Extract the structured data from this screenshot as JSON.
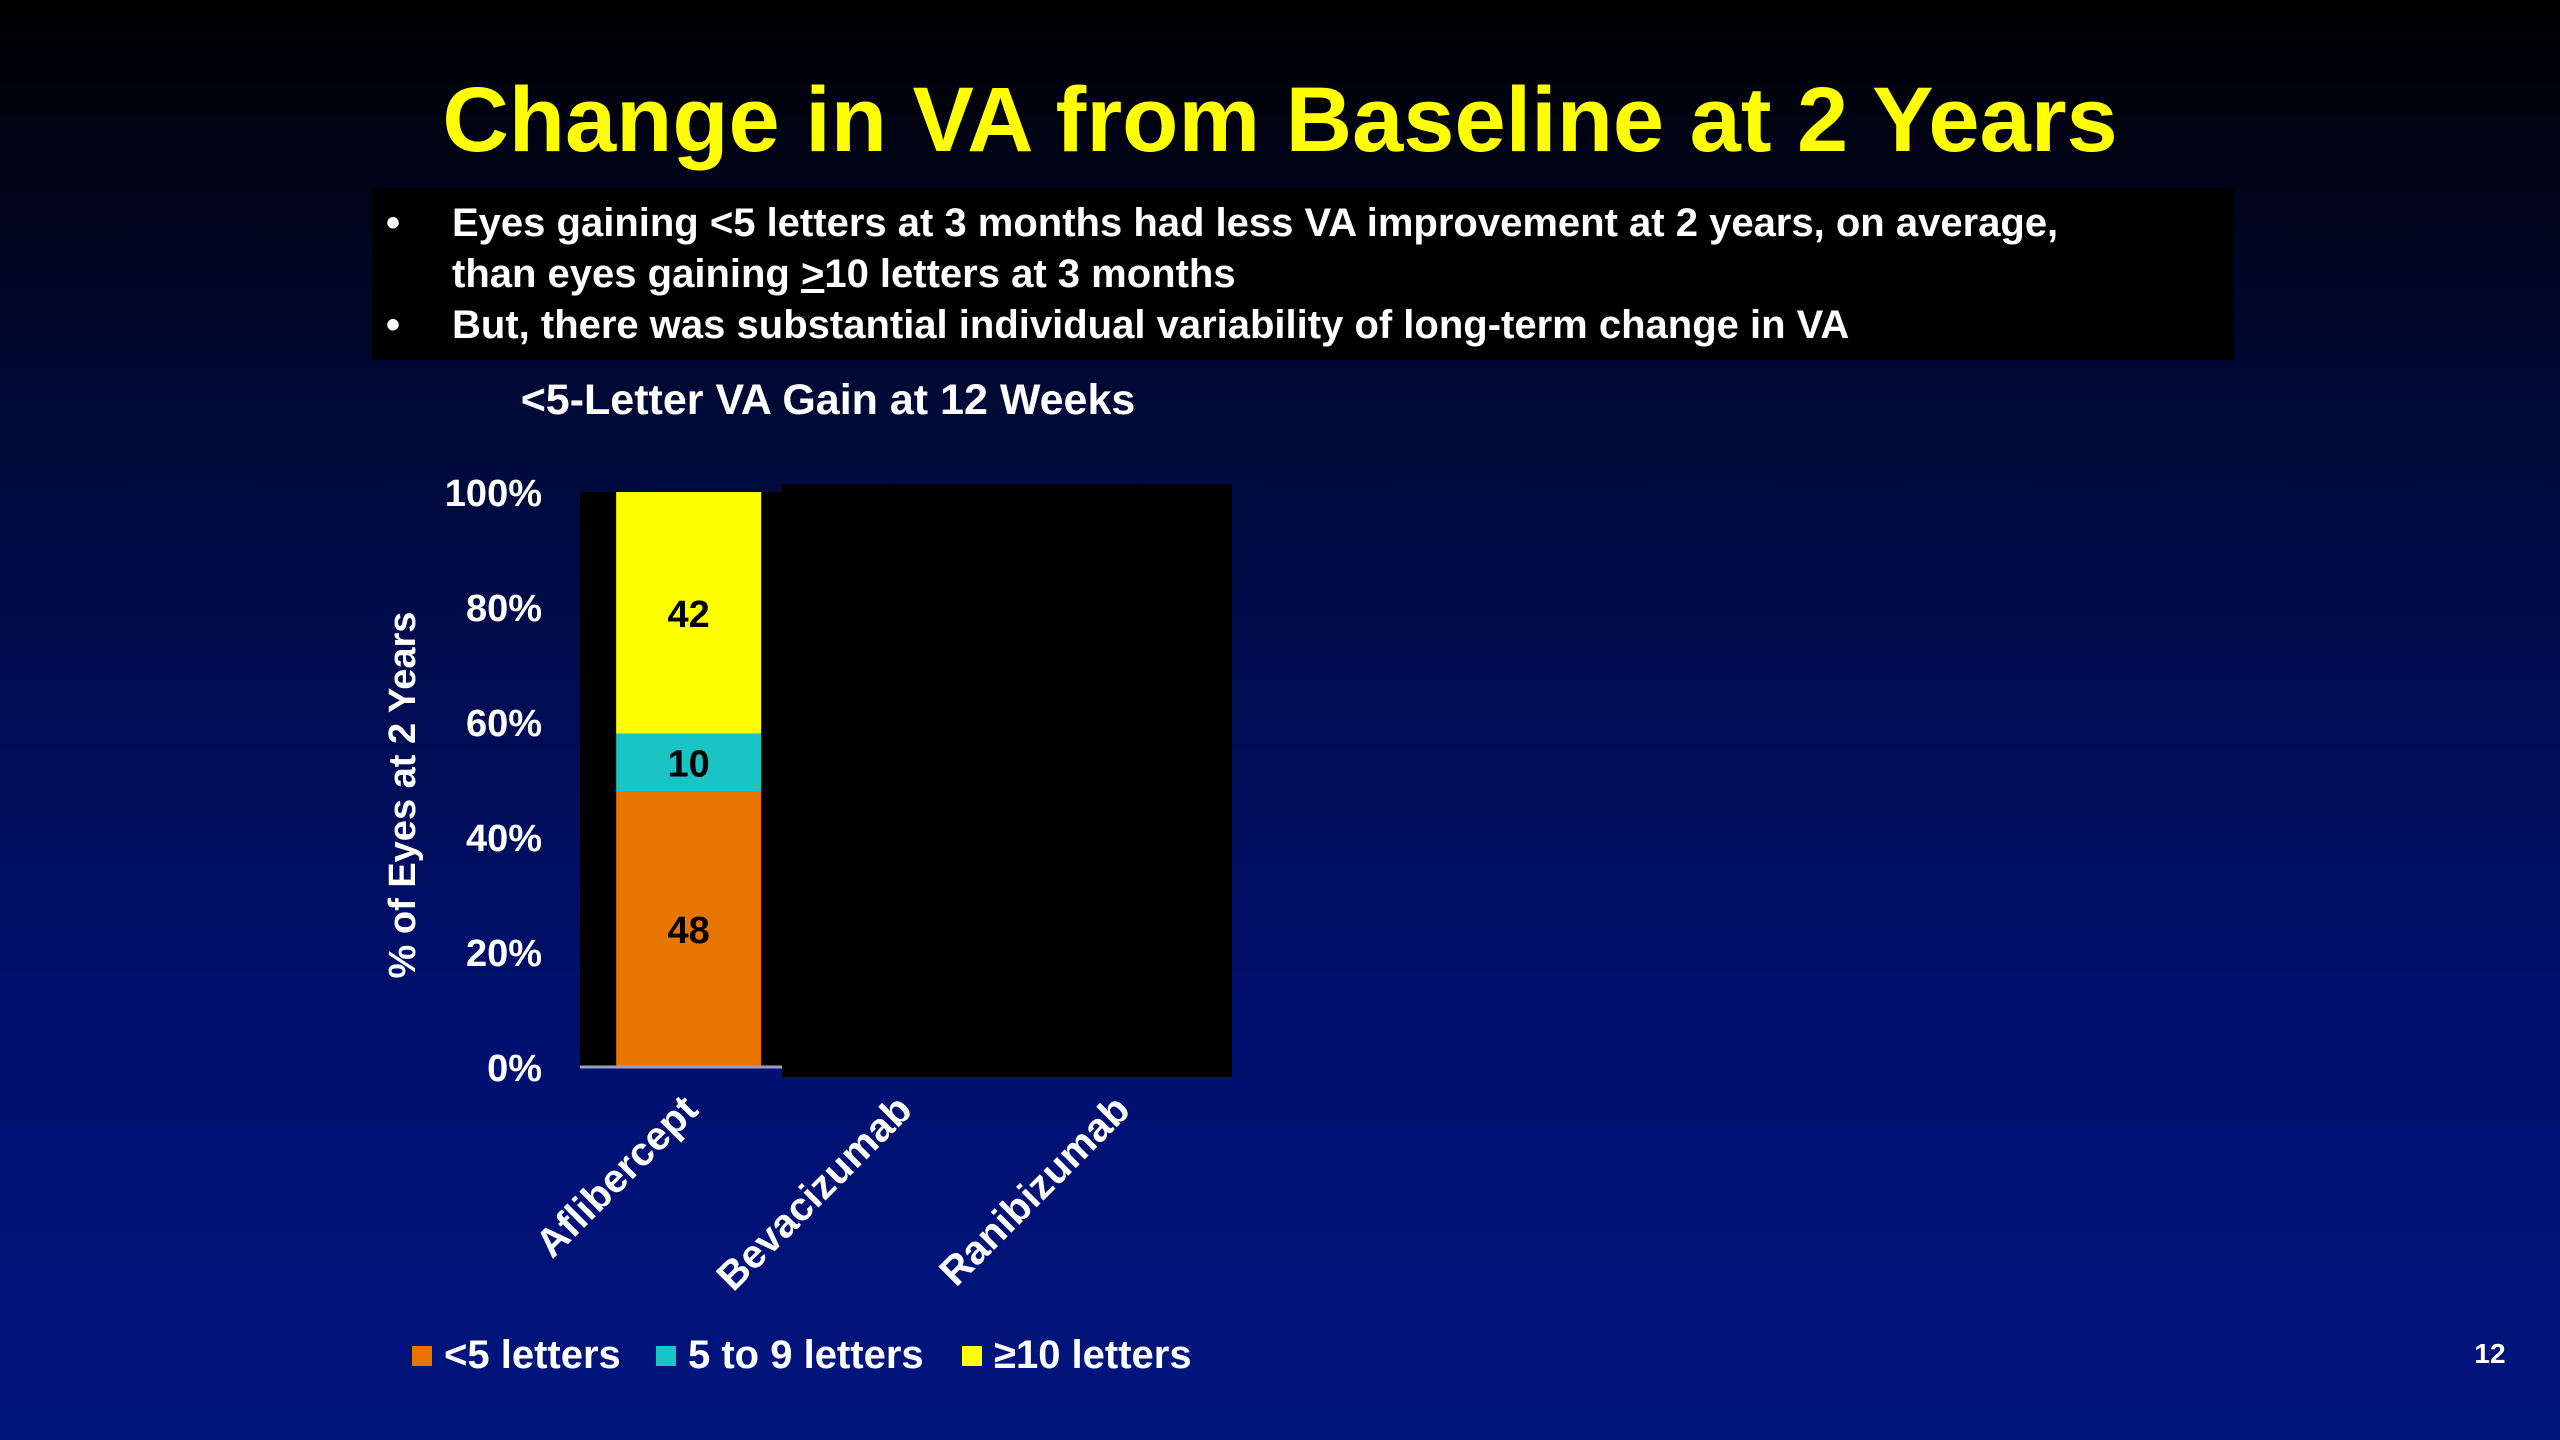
{
  "slide": {
    "title": "Change in VA from Baseline at 2 Years",
    "bullets": {
      "b1_line1": "Eyes gaining <5 letters at 3 months had less VA improvement at 2 years, on average,",
      "b1_line2_pre": "than eyes gaining ",
      "b1_line2_under": ">",
      "b1_line2_post": "10 letters at 3 months",
      "b2": "But, there was substantial individual variability of long-term change in VA"
    },
    "page_number": "12"
  },
  "chart_data": {
    "type": "bar",
    "stacked": true,
    "title": "<5-Letter VA Gain at 12 Weeks",
    "xlabel": "",
    "ylabel": "% of Eyes at 2 Years",
    "categories": [
      "Aflibercept",
      "Bevacizumab",
      "Ranibizumab"
    ],
    "ylim": [
      0,
      100
    ],
    "yticks": [
      0,
      20,
      40,
      60,
      80,
      100
    ],
    "ytick_labels": [
      "0%",
      "20%",
      "40%",
      "60%",
      "80%",
      "100%"
    ],
    "series": [
      {
        "name": "<5 letters",
        "color": "#e87500",
        "values": [
          48,
          null,
          null
        ],
        "labels": [
          "48",
          "",
          ""
        ]
      },
      {
        "name": "5 to 9 letters",
        "color": "#18c4c4",
        "values": [
          10,
          null,
          null
        ],
        "labels": [
          "10",
          "",
          ""
        ]
      },
      {
        "name": "≥10 letters",
        "color": "#ffff00",
        "values": [
          42,
          null,
          null
        ],
        "labels": [
          "42",
          "",
          ""
        ]
      }
    ],
    "legend_position": "bottom",
    "grid": false,
    "obscured_categories_note": ""
  }
}
